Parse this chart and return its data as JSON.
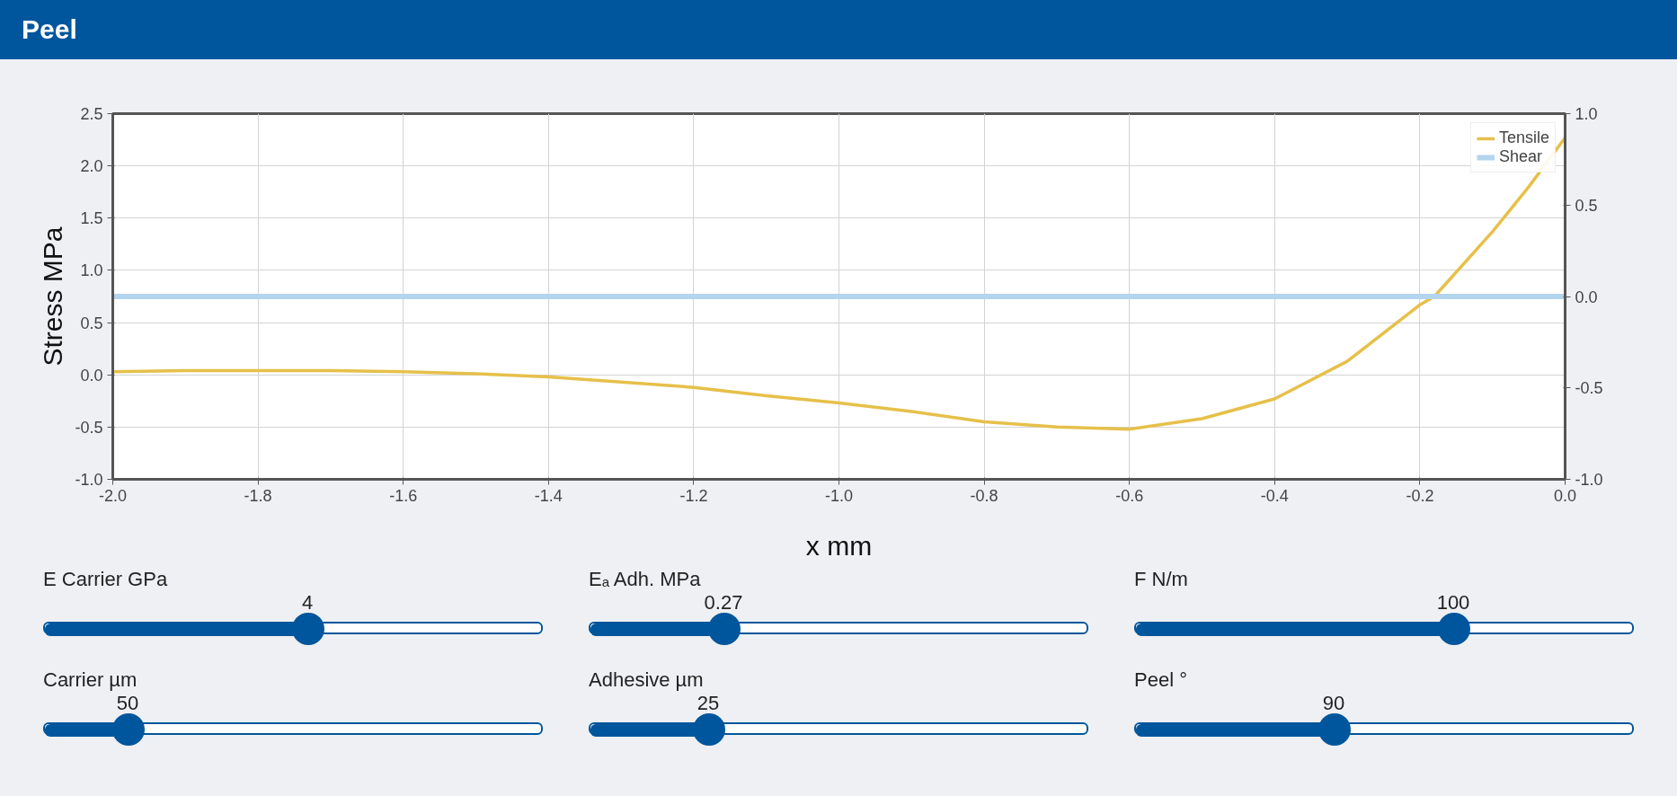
{
  "chart_data": {
    "type": "line",
    "title": "Peel",
    "xlabel": "x mm",
    "ylabel": "Stress MPa",
    "xlim": [
      -2.0,
      0.0
    ],
    "xticks": [
      {
        "value": -2.0,
        "label": "-2.0"
      },
      {
        "value": -1.8,
        "label": "-1.8"
      },
      {
        "value": -1.6,
        "label": "-1.6"
      },
      {
        "value": -1.4,
        "label": "-1.4"
      },
      {
        "value": -1.2,
        "label": "-1.2"
      },
      {
        "value": -1.0,
        "label": "-1.0"
      },
      {
        "value": -0.8,
        "label": "-0.8"
      },
      {
        "value": -0.6,
        "label": "-0.6"
      },
      {
        "value": -0.4,
        "label": "-0.4"
      },
      {
        "value": -0.2,
        "label": "-0.2"
      },
      {
        "value": 0.0,
        "label": "0.0"
      }
    ],
    "ylim": [
      -1.0,
      2.5
    ],
    "yticks": [
      {
        "value": -1.0,
        "label": "-1.0"
      },
      {
        "value": -0.5,
        "label": "-0.5"
      },
      {
        "value": 0.0,
        "label": "0.0"
      },
      0.5,
      {
        "value": 1.0,
        "label": "1.0"
      },
      1.5,
      {
        "value": 2.0,
        "label": "2.0"
      },
      2.5
    ],
    "y2lim": [
      -1.0,
      1.0
    ],
    "y2ticks": [
      {
        "value": -1.0,
        "label": "-1.0"
      },
      {
        "value": -0.5,
        "label": "-0.5"
      },
      {
        "value": 0.0,
        "label": "0.0"
      },
      0.5,
      {
        "value": 1.0,
        "label": "1.0"
      }
    ],
    "grid": true,
    "legend": "top right",
    "series": [
      {
        "name": "Tensile",
        "color": "#e6c04a",
        "x": [
          -2.0,
          -1.9,
          -1.8,
          -1.7,
          -1.6,
          -1.5,
          -1.4,
          -1.3,
          -1.2,
          -1.1,
          -1.0,
          -0.9,
          -0.8,
          -0.7,
          -0.6,
          -0.5,
          -0.4,
          -0.3,
          -0.2,
          -0.18,
          -0.1,
          -0.05,
          0.0
        ],
        "values": [
          0.03,
          0.04,
          0.04,
          0.04,
          0.03,
          0.01,
          -0.02,
          -0.07,
          -0.12,
          -0.2,
          -0.27,
          -0.35,
          -0.45,
          -0.5,
          -0.52,
          -0.42,
          -0.23,
          0.13,
          0.67,
          0.75,
          1.37,
          1.8,
          2.27
        ]
      },
      {
        "name": "Shear",
        "color": "#b3d5ee",
        "axis": "y2",
        "x": [
          -2.0,
          0.0
        ],
        "values": [
          0.0,
          0.0
        ]
      }
    ],
    "annotations": [
      "E Carrier GPa",
      "4",
      "Eₐ Adh. MPa",
      "0.27",
      "F N/m",
      "100",
      "Carrier µm",
      "50",
      "Adhesive µm",
      "25",
      "Peel °",
      "90"
    ]
  }
}
